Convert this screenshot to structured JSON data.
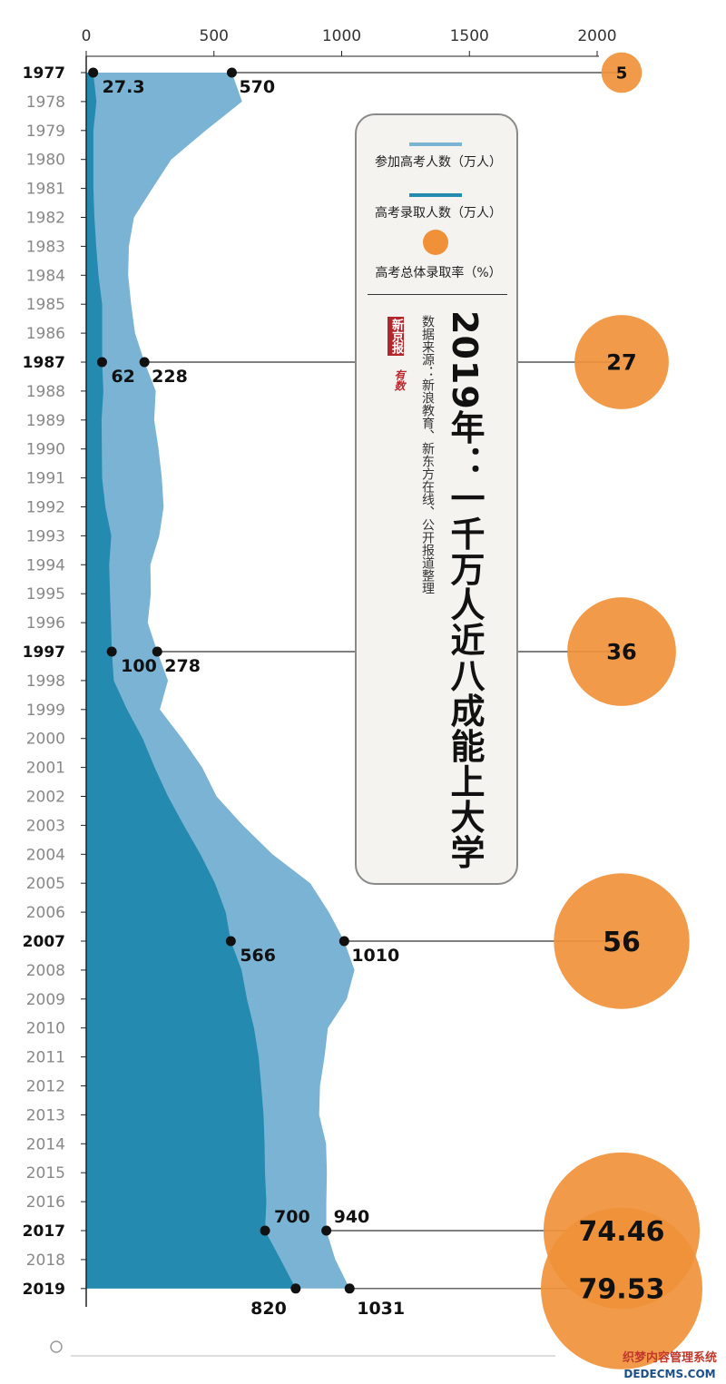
{
  "chart_data": {
    "type": "area",
    "title": "2019年：一千万人近八成能上大学",
    "source": "数据来源：新浪教育、新东方在线、公开报道整理",
    "logo_text": "新京报",
    "logo_sub": "有数",
    "xlim": [
      0,
      2000
    ],
    "x_ticks": [
      "0",
      "500",
      "1000",
      "1500",
      "2000"
    ],
    "x_tick_values": [
      0,
      500,
      1000,
      1500,
      2000
    ],
    "years": [
      1977,
      1978,
      1979,
      1980,
      1981,
      1982,
      1983,
      1984,
      1985,
      1986,
      1987,
      1988,
      1989,
      1990,
      1991,
      1992,
      1993,
      1994,
      1995,
      1996,
      1997,
      1998,
      1999,
      2000,
      2001,
      2002,
      2003,
      2004,
      2005,
      2006,
      2007,
      2008,
      2009,
      2010,
      2011,
      2012,
      2013,
      2014,
      2015,
      2016,
      2017,
      2018,
      2019
    ],
    "highlight_years": [
      1977,
      1987,
      1997,
      2007,
      2017,
      2019
    ],
    "series": [
      {
        "name": "参加高考人数（万人）",
        "color": "#7ab3d4",
        "values": [
          570,
          610,
          468,
          333,
          259,
          187,
          167,
          164,
          176,
          191,
          228,
          272,
          266,
          283,
          296,
          303,
          286,
          251,
          253,
          241,
          278,
          320,
          288,
          375,
          454,
          510,
          613,
          729,
          877,
          950,
          1010,
          1050,
          1020,
          946,
          933,
          915,
          912,
          939,
          942,
          940,
          940,
          975,
          1031
        ]
      },
      {
        "name": "高考录取人数（万人）",
        "color": "#248ab0",
        "values": [
          27.3,
          40,
          28,
          28,
          28,
          32,
          39,
          48,
          62,
          62,
          62,
          67,
          60,
          61,
          62,
          75,
          98,
          90,
          93,
          97,
          100,
          108,
          160,
          221,
          268,
          320,
          382,
          447,
          504,
          546,
          566,
          608,
          629,
          657,
          675,
          685,
          694,
          698,
          700,
          705,
          700,
          761,
          820
        ]
      }
    ],
    "admission_rate": {
      "name": "高考总体录取率（%）",
      "color": "#f0913a",
      "years": [
        1977,
        1987,
        1997,
        2007,
        2017,
        2019
      ],
      "values": [
        5,
        27,
        36,
        56,
        74.46,
        79.53
      ],
      "labels": [
        "5",
        "27",
        "36",
        "56",
        "74.46",
        "79.53"
      ]
    },
    "point_labels": [
      {
        "year": 1977,
        "admitted": "27.3",
        "applicants": "570"
      },
      {
        "year": 1987,
        "admitted": "62",
        "applicants": "228"
      },
      {
        "year": 1997,
        "admitted": "100",
        "applicants": "278"
      },
      {
        "year": 2007,
        "admitted": "566",
        "applicants": "1010"
      },
      {
        "year": 2017,
        "admitted": "700",
        "applicants": "940"
      },
      {
        "year": 2019,
        "admitted": "820",
        "applicants": "1031"
      }
    ],
    "legend": [
      {
        "label": "参加高考人数（万人）",
        "color": "#7ab3d4",
        "kind": "line"
      },
      {
        "label": "高考录取人数（万人）",
        "color": "#248ab0",
        "kind": "line"
      },
      {
        "label": "高考总体录取率（%）",
        "color": "#f0913a",
        "kind": "dot"
      }
    ],
    "watermark": "织梦内容管理系统 DEDECMS.COM"
  }
}
